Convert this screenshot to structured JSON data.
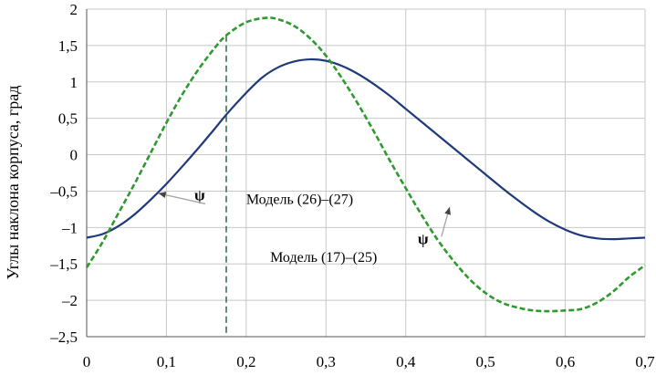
{
  "chart_data": {
    "type": "line",
    "ylabel": "Углы наклона корпуса, град",
    "xlabel": "",
    "xlim": [
      0,
      0.7
    ],
    "ylim": [
      -2.5,
      2
    ],
    "xticks": [
      0,
      0.1,
      0.2,
      0.3,
      0.4,
      0.5,
      0.6,
      0.7
    ],
    "xtick_labels": [
      "0",
      "0,1",
      "0,2",
      "0,3",
      "0,4",
      "0,5",
      "0,6",
      "0,7"
    ],
    "yticks": [
      2,
      1.5,
      1,
      0.5,
      0,
      -0.5,
      -1,
      -1.5,
      -2,
      -2.5
    ],
    "ytick_labels": [
      "2",
      "1,5",
      "1",
      "0,5",
      "0",
      "–0,5",
      "–1",
      "–1,5",
      "–2",
      "–2,5"
    ],
    "grid": true,
    "series": [
      {
        "name": "Модель (26)–(27)",
        "color": "#1f3a7a",
        "style": "solid",
        "x": [
          0,
          0.02,
          0.04,
          0.06,
          0.08,
          0.1,
          0.12,
          0.14,
          0.16,
          0.175,
          0.2,
          0.22,
          0.24,
          0.26,
          0.28,
          0.3,
          0.32,
          0.34,
          0.36,
          0.38,
          0.4,
          0.42,
          0.44,
          0.46,
          0.48,
          0.5,
          0.52,
          0.54,
          0.56,
          0.58,
          0.6,
          0.62,
          0.64,
          0.66,
          0.68,
          0.7
        ],
        "y": [
          -1.14,
          -1.09,
          -0.98,
          -0.82,
          -0.62,
          -0.4,
          -0.16,
          0.09,
          0.35,
          0.55,
          0.85,
          1.06,
          1.2,
          1.28,
          1.31,
          1.29,
          1.22,
          1.11,
          0.97,
          0.81,
          0.63,
          0.45,
          0.27,
          0.09,
          -0.09,
          -0.27,
          -0.45,
          -0.62,
          -0.78,
          -0.92,
          -1.03,
          -1.11,
          -1.15,
          -1.16,
          -1.15,
          -1.14
        ]
      },
      {
        "name": "Модель (17)–(25)",
        "color": "#2e9a2e",
        "style": "dashed",
        "x": [
          0,
          0.02,
          0.04,
          0.06,
          0.08,
          0.1,
          0.12,
          0.14,
          0.16,
          0.175,
          0.2,
          0.225,
          0.24,
          0.26,
          0.28,
          0.3,
          0.32,
          0.34,
          0.36,
          0.38,
          0.4,
          0.42,
          0.44,
          0.46,
          0.48,
          0.5,
          0.52,
          0.54,
          0.56,
          0.58,
          0.6,
          0.62,
          0.64,
          0.66,
          0.68,
          0.7
        ],
        "y": [
          -1.55,
          -1.2,
          -0.8,
          -0.4,
          0.02,
          0.44,
          0.83,
          1.17,
          1.46,
          1.64,
          1.82,
          1.88,
          1.86,
          1.77,
          1.6,
          1.36,
          1.05,
          0.7,
          0.32,
          -0.08,
          -0.46,
          -0.83,
          -1.17,
          -1.46,
          -1.71,
          -1.9,
          -2.03,
          -2.1,
          -2.14,
          -2.15,
          -2.14,
          -2.12,
          -2.03,
          -1.88,
          -1.68,
          -1.52
        ]
      }
    ],
    "vertical_line": {
      "x": 0.175,
      "style": "dashed",
      "color": "#2a6a4a"
    },
    "annotations": [
      {
        "text": "ψ",
        "x": 0.135,
        "y": -0.55,
        "arrow_to": [
          0.09,
          -0.53
        ]
      },
      {
        "text": "Модель (26)–(27)",
        "x": 0.2,
        "y": -0.6
      },
      {
        "text": "ψ",
        "x": 0.415,
        "y": -1.15,
        "arrow_to": [
          0.455,
          -0.72
        ]
      },
      {
        "text": "Модель (17)–(25)",
        "x": 0.23,
        "y": -1.4
      }
    ]
  }
}
